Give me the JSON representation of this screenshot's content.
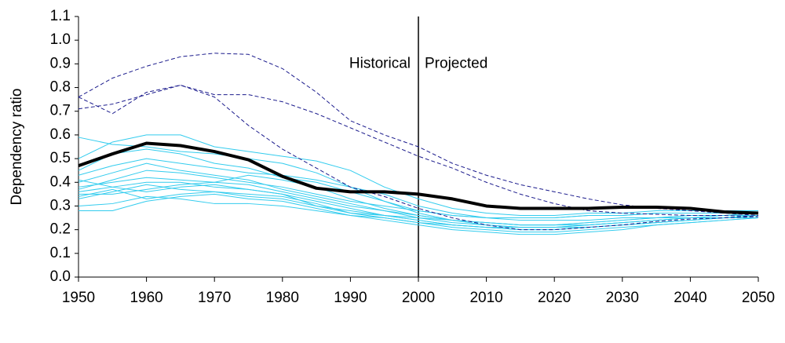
{
  "chart_data": {
    "type": "line",
    "y_label": "Dependency ratio",
    "annotations": [
      "Historical",
      "Projected"
    ],
    "divider_x": 2000,
    "x": [
      1950,
      1955,
      1960,
      1965,
      1970,
      1975,
      1980,
      1985,
      1990,
      1995,
      2000,
      2005,
      2010,
      2015,
      2020,
      2025,
      2030,
      2035,
      2040,
      2045,
      2050
    ],
    "xlim": [
      1950,
      2050
    ],
    "xticks": [
      1950,
      1960,
      1970,
      1980,
      1990,
      2000,
      2010,
      2020,
      2030,
      2040,
      2050
    ],
    "ylim": [
      0,
      1.1
    ],
    "yticks": [
      {
        "value": 0,
        "label": "0.0"
      },
      0.1,
      0.2,
      0.3,
      0.4,
      0.5,
      0.6,
      0.7,
      0.8,
      0.9,
      {
        "value": 1,
        "label": "1.0"
      },
      1.1
    ],
    "grid": false,
    "series": [
      {
        "color": "#33ccee",
        "width": 1,
        "dashed": false,
        "values": [
          0.59,
          0.56,
          0.55,
          0.53,
          0.52,
          0.5,
          0.48,
          0.44,
          0.38,
          0.32,
          0.27,
          0.24,
          0.22,
          0.21,
          0.21,
          0.21,
          0.22,
          0.23,
          0.24,
          0.25,
          0.26
        ]
      },
      {
        "color": "#33ccee",
        "width": 1,
        "dashed": false,
        "values": [
          0.5,
          0.57,
          0.6,
          0.6,
          0.55,
          0.53,
          0.51,
          0.49,
          0.45,
          0.38,
          0.33,
          0.29,
          0.27,
          0.26,
          0.26,
          0.27,
          0.27,
          0.28,
          0.28,
          0.28,
          0.28
        ]
      },
      {
        "color": "#33ccee",
        "width": 1,
        "dashed": false,
        "values": [
          0.45,
          0.52,
          0.54,
          0.52,
          0.48,
          0.46,
          0.42,
          0.4,
          0.36,
          0.32,
          0.28,
          0.26,
          0.25,
          0.25,
          0.25,
          0.26,
          0.26,
          0.27,
          0.27,
          0.27,
          0.27
        ]
      },
      {
        "color": "#33ccee",
        "width": 1,
        "dashed": false,
        "values": [
          0.4,
          0.44,
          0.48,
          0.45,
          0.43,
          0.41,
          0.37,
          0.34,
          0.31,
          0.28,
          0.25,
          0.23,
          0.22,
          0.21,
          0.21,
          0.22,
          0.23,
          0.24,
          0.25,
          0.25,
          0.26
        ]
      },
      {
        "color": "#33ccee",
        "width": 1,
        "dashed": false,
        "values": [
          0.38,
          0.4,
          0.42,
          0.41,
          0.4,
          0.39,
          0.36,
          0.33,
          0.3,
          0.28,
          0.26,
          0.24,
          0.23,
          0.22,
          0.22,
          0.23,
          0.24,
          0.25,
          0.25,
          0.26,
          0.26
        ]
      },
      {
        "color": "#33ccee",
        "width": 1,
        "dashed": false,
        "values": [
          0.36,
          0.38,
          0.4,
          0.4,
          0.38,
          0.37,
          0.35,
          0.32,
          0.29,
          0.26,
          0.24,
          0.22,
          0.21,
          0.2,
          0.2,
          0.21,
          0.22,
          0.23,
          0.24,
          0.25,
          0.25
        ]
      },
      {
        "color": "#33ccee",
        "width": 1,
        "dashed": false,
        "values": [
          0.35,
          0.35,
          0.37,
          0.39,
          0.4,
          0.43,
          0.41,
          0.38,
          0.33,
          0.29,
          0.26,
          0.24,
          0.23,
          0.22,
          0.22,
          0.23,
          0.24,
          0.25,
          0.26,
          0.26,
          0.27
        ]
      },
      {
        "color": "#33ccee",
        "width": 1,
        "dashed": false,
        "values": [
          0.34,
          0.37,
          0.33,
          0.35,
          0.36,
          0.34,
          0.33,
          0.3,
          0.28,
          0.26,
          0.24,
          0.22,
          0.21,
          0.2,
          0.2,
          0.21,
          0.22,
          0.23,
          0.24,
          0.25,
          0.25
        ]
      },
      {
        "color": "#33ccee",
        "width": 1,
        "dashed": false,
        "values": [
          0.3,
          0.31,
          0.34,
          0.33,
          0.31,
          0.31,
          0.3,
          0.28,
          0.26,
          0.25,
          0.23,
          0.21,
          0.2,
          0.19,
          0.19,
          0.2,
          0.21,
          0.22,
          0.23,
          0.24,
          0.25
        ]
      },
      {
        "color": "#33ccee",
        "width": 1,
        "dashed": false,
        "values": [
          0.28,
          0.28,
          0.32,
          0.34,
          0.35,
          0.33,
          0.32,
          0.29,
          0.26,
          0.24,
          0.22,
          0.2,
          0.19,
          0.18,
          0.18,
          0.19,
          0.2,
          0.22,
          0.23,
          0.24,
          0.25
        ]
      },
      {
        "color": "#33ccee",
        "width": 1,
        "dashed": false,
        "values": [
          0.43,
          0.47,
          0.5,
          0.48,
          0.46,
          0.44,
          0.43,
          0.41,
          0.38,
          0.35,
          0.3,
          0.27,
          0.25,
          0.24,
          0.24,
          0.24,
          0.25,
          0.25,
          0.26,
          0.26,
          0.26
        ]
      },
      {
        "color": "#33ccee",
        "width": 1,
        "dashed": false,
        "values": [
          0.37,
          0.41,
          0.45,
          0.44,
          0.42,
          0.4,
          0.38,
          0.35,
          0.32,
          0.3,
          0.28,
          0.26,
          0.25,
          0.25,
          0.25,
          0.26,
          0.26,
          0.27,
          0.27,
          0.27,
          0.27
        ]
      },
      {
        "color": "#33ccee",
        "width": 1,
        "dashed": false,
        "values": [
          0.33,
          0.36,
          0.39,
          0.37,
          0.36,
          0.35,
          0.34,
          0.31,
          0.27,
          0.25,
          0.23,
          0.22,
          0.21,
          0.21,
          0.21,
          0.22,
          0.23,
          0.24,
          0.25,
          0.25,
          0.26
        ]
      },
      {
        "color": "#33ccee",
        "width": 1,
        "dashed": false,
        "values": [
          0.41,
          0.38,
          0.36,
          0.38,
          0.39,
          0.37,
          0.35,
          0.3,
          0.27,
          0.26,
          0.25,
          0.24,
          0.23,
          0.22,
          0.22,
          0.22,
          0.23,
          0.24,
          0.25,
          0.25,
          0.26
        ]
      },
      {
        "color": "#1a1a8c",
        "width": 1,
        "dashed": true,
        "values": [
          0.76,
          0.84,
          0.89,
          0.93,
          0.945,
          0.94,
          0.88,
          0.78,
          0.66,
          0.6,
          0.55,
          0.48,
          0.43,
          0.39,
          0.36,
          0.33,
          0.305,
          0.29,
          0.28,
          0.27,
          0.26
        ]
      },
      {
        "color": "#1a1a8c",
        "width": 1,
        "dashed": true,
        "values": [
          0.76,
          0.69,
          0.78,
          0.81,
          0.77,
          0.77,
          0.74,
          0.69,
          0.63,
          0.57,
          0.51,
          0.46,
          0.4,
          0.35,
          0.31,
          0.28,
          0.27,
          0.265,
          0.26,
          0.26,
          0.255
        ]
      },
      {
        "color": "#1a1a8c",
        "width": 1,
        "dashed": true,
        "values": [
          0.71,
          0.73,
          0.77,
          0.81,
          0.76,
          0.64,
          0.54,
          0.46,
          0.38,
          0.34,
          0.29,
          0.25,
          0.22,
          0.2,
          0.2,
          0.21,
          0.22,
          0.235,
          0.245,
          0.25,
          0.255
        ]
      },
      {
        "color": "#000000",
        "width": 4,
        "dashed": false,
        "values": [
          0.47,
          0.52,
          0.565,
          0.555,
          0.53,
          0.495,
          0.425,
          0.375,
          0.36,
          0.36,
          0.35,
          0.33,
          0.3,
          0.29,
          0.29,
          0.29,
          0.295,
          0.295,
          0.29,
          0.275,
          0.27
        ]
      }
    ]
  }
}
